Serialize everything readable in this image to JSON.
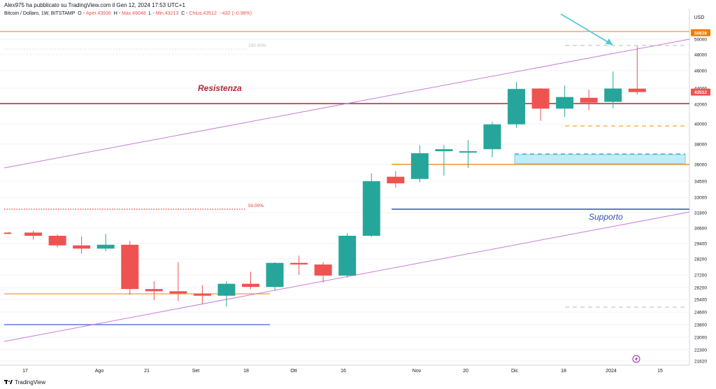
{
  "header": {
    "published": "Alex975 ha pubblicato su TradingView.com il Gen 12, 2024 17:53 UTC+1"
  },
  "symbol": {
    "name": "Bitcoin / Dollaro, 1W, BITSTAMP",
    "o_label": "O",
    "open": "Aper.43936",
    "h_label": "H",
    "high": "Max.49048",
    "l_label": "L",
    "low": "Min.43213",
    "c_label": "C",
    "close": "Chius.43512",
    "change": "−432 (−0.98%)"
  },
  "footer": {
    "brand": "TradingView"
  },
  "colors": {
    "bull": "#26a69a",
    "bear": "#ef5350",
    "trendline": "#c77dd6",
    "resistance": "#b2283b",
    "support": "#2f4fb8",
    "orange": "#f57c00",
    "arrow": "#4dc9d9",
    "fib": "#e53935",
    "box": "#bfeef7"
  },
  "chart_data": {
    "type": "candlestick",
    "currency": "USD",
    "interval": "1W",
    "y_axis": {
      "ticks": [
        21620,
        22300,
        23000,
        23800,
        24600,
        25400,
        26200,
        27200,
        28200,
        29400,
        30600,
        31800,
        33000,
        34500,
        36000,
        38000,
        40000,
        42000,
        44000,
        46000,
        48000,
        50000
      ],
      "tick_labels": [
        "21620",
        "22300",
        "23000",
        "23800",
        "24600",
        "25400",
        "26200",
        "27200",
        "28200",
        "29400",
        "30600",
        "31800",
        "33000",
        "34500",
        "36000",
        "38000",
        "40000",
        "42000",
        "44000",
        "46000",
        "48000",
        "50000"
      ]
    },
    "x_axis": {
      "labels": [
        "17",
        "Ago",
        "21",
        "Set",
        "18",
        "Ott",
        "16",
        "Nov",
        "20",
        "Dic",
        "18",
        "2024",
        "15"
      ]
    },
    "candles": [
      {
        "o": 30250,
        "h": 30300,
        "l": 30150,
        "c": 30150
      },
      {
        "o": 30250,
        "h": 30400,
        "l": 29700,
        "c": 30000
      },
      {
        "o": 30000,
        "h": 30100,
        "l": 29100,
        "c": 29250
      },
      {
        "o": 29250,
        "h": 29950,
        "l": 28600,
        "c": 29000
      },
      {
        "o": 29000,
        "h": 30150,
        "l": 28800,
        "c": 29300
      },
      {
        "o": 29300,
        "h": 29600,
        "l": 25700,
        "c": 26100
      },
      {
        "o": 26100,
        "h": 26700,
        "l": 25350,
        "c": 25950
      },
      {
        "o": 25950,
        "h": 28000,
        "l": 25300,
        "c": 25800
      },
      {
        "o": 25800,
        "h": 26400,
        "l": 25100,
        "c": 25650
      },
      {
        "o": 25650,
        "h": 26700,
        "l": 24950,
        "c": 26500
      },
      {
        "o": 26500,
        "h": 27400,
        "l": 26100,
        "c": 26250
      },
      {
        "o": 26250,
        "h": 28000,
        "l": 26000,
        "c": 27950
      },
      {
        "o": 27950,
        "h": 28450,
        "l": 27200,
        "c": 27850
      },
      {
        "o": 27850,
        "h": 28000,
        "l": 26600,
        "c": 27150
      },
      {
        "o": 27150,
        "h": 30200,
        "l": 27000,
        "c": 30000
      },
      {
        "o": 30000,
        "h": 35200,
        "l": 29900,
        "c": 34500
      },
      {
        "o": 34900,
        "h": 35400,
        "l": 33900,
        "c": 34300
      },
      {
        "o": 34700,
        "h": 37900,
        "l": 34400,
        "c": 37100
      },
      {
        "o": 37300,
        "h": 37900,
        "l": 35000,
        "c": 37500
      },
      {
        "o": 37300,
        "h": 38400,
        "l": 35700,
        "c": 37300
      },
      {
        "o": 37500,
        "h": 40200,
        "l": 36700,
        "c": 39950
      },
      {
        "o": 39950,
        "h": 44700,
        "l": 39600,
        "c": 43900
      },
      {
        "o": 43950,
        "h": 44000,
        "l": 40300,
        "c": 41550
      },
      {
        "o": 41550,
        "h": 44300,
        "l": 40700,
        "c": 42900
      },
      {
        "o": 42800,
        "h": 43800,
        "l": 41400,
        "c": 42200
      },
      {
        "o": 42300,
        "h": 45900,
        "l": 41600,
        "c": 43950
      },
      {
        "o": 43936,
        "h": 49048,
        "l": 43213,
        "c": 43512
      }
    ],
    "price_labels": [
      {
        "value": 50838,
        "text": "50838",
        "color": "#f57c00"
      },
      {
        "value": 43512,
        "text": "43512",
        "color": "#ef5350"
      }
    ],
    "annotations": [
      {
        "text": "Resistenza",
        "color": "#b2283b"
      },
      {
        "text": "Supporto",
        "color": "#2f4fb8"
      },
      {
        "text": "100.00%",
        "color": "#bdbdbd"
      },
      {
        "text": "50.00%",
        "color": "#e53935"
      }
    ]
  }
}
